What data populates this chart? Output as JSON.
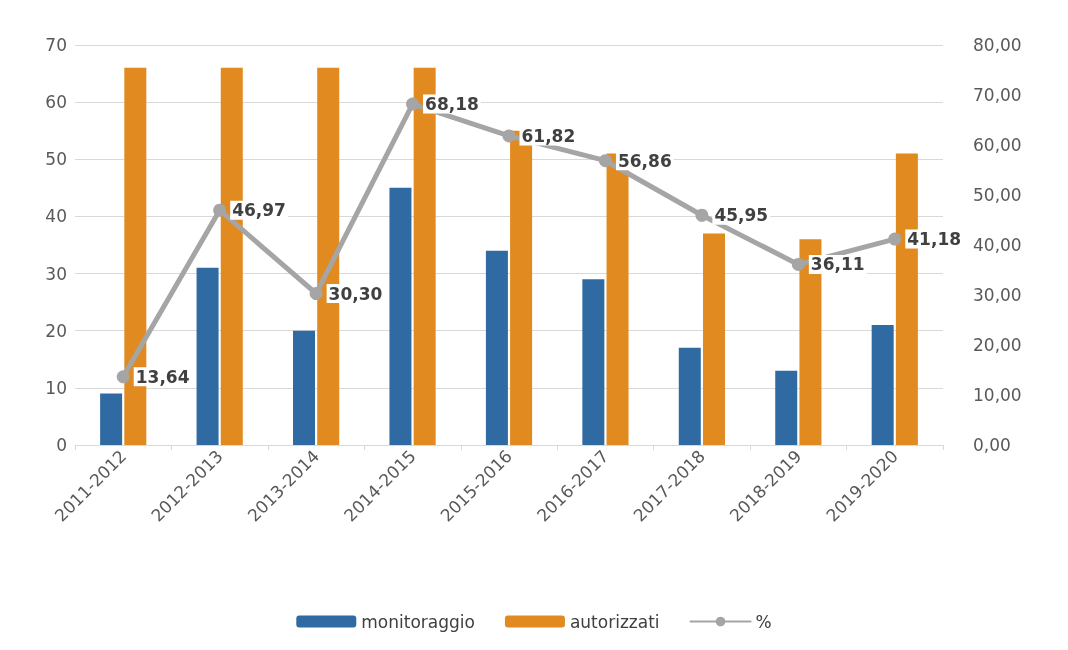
{
  "chart_data": {
    "type": "bar",
    "categories": [
      "2011-2012",
      "2012-2013",
      "2013-2014",
      "2014-2015",
      "2015-2016",
      "2016-2017",
      "2017-2018",
      "2018-2019",
      "2019-2020"
    ],
    "series": [
      {
        "name": "monitoraggio",
        "color": "#2f6aa3",
        "values": [
          9,
          31,
          20,
          45,
          34,
          29,
          17,
          13,
          21
        ]
      },
      {
        "name": "autorizzati",
        "color": "#e08a1f",
        "values": [
          66,
          66,
          66,
          66,
          55,
          51,
          37,
          36,
          51
        ]
      },
      {
        "name": "%",
        "type": "line",
        "axis": "y2",
        "color": "#a5a5a5",
        "marker": "circle",
        "line_style": "solid",
        "values": [
          13.64,
          46.97,
          30.3,
          68.18,
          61.82,
          56.86,
          45.95,
          36.11,
          41.18
        ],
        "value_labels": [
          "13,64",
          "46,97",
          "30,30",
          "68,18",
          "61,82",
          "56,86",
          "45,95",
          "36,11",
          "41,18"
        ]
      }
    ],
    "ylim": [
      0,
      70
    ],
    "yticks": [
      0,
      10,
      20,
      30,
      40,
      50,
      60,
      70
    ],
    "y2lim": [
      0,
      80
    ],
    "y2ticks": [
      {
        "value": 0,
        "label": "0,00"
      },
      {
        "value": 10,
        "label": "10,00"
      },
      {
        "value": 20,
        "label": "20,00"
      },
      {
        "value": 30,
        "label": "30,00"
      },
      {
        "value": 40,
        "label": "40,00"
      },
      {
        "value": 50,
        "label": "50,00"
      },
      {
        "value": 60,
        "label": "60,00"
      },
      {
        "value": 70,
        "label": "70,00"
      },
      {
        "value": 80,
        "label": "80,00"
      }
    ],
    "grid": "y",
    "legend": "bottom"
  }
}
